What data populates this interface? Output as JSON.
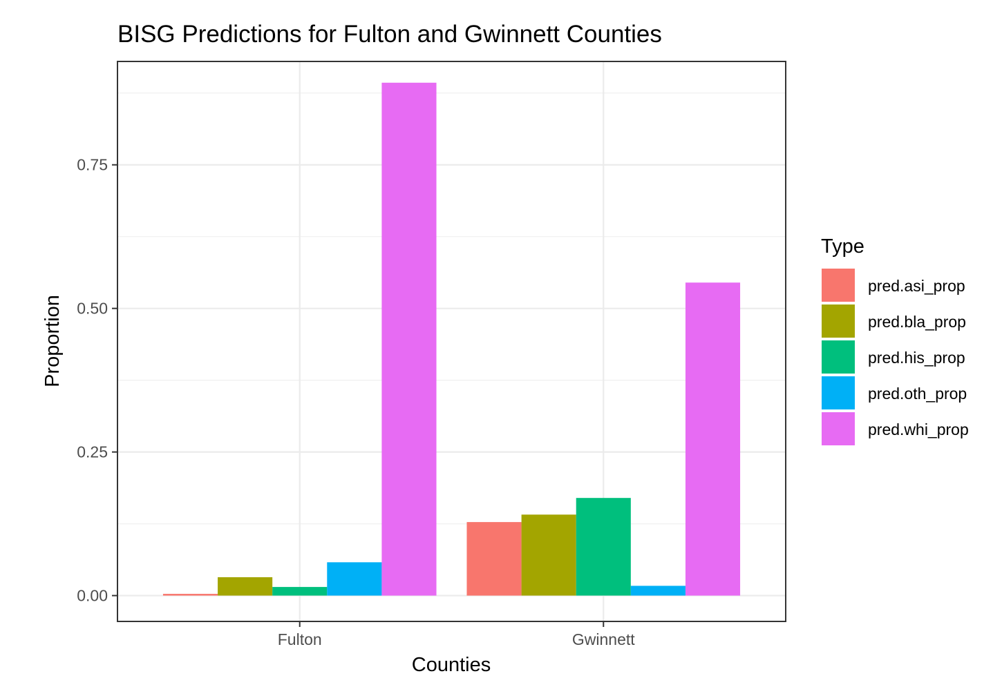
{
  "chart_data": {
    "type": "bar",
    "title": "BISG Predictions for Fulton and Gwinnett Counties",
    "xlabel": "Counties",
    "ylabel": "Proportion",
    "categories": [
      "Fulton",
      "Gwinnett"
    ],
    "ylim": [
      -0.045,
      0.93
    ],
    "yticks": [
      0.0,
      0.25,
      0.5,
      0.75
    ],
    "ytick_labels": [
      "0.00",
      "0.25",
      "0.50",
      "0.75"
    ],
    "grid": true,
    "legend": {
      "title": "Type",
      "position": "right"
    },
    "series": [
      {
        "name": "pred.asi_prop",
        "color": "#F8766D",
        "values": [
          0.003,
          0.128
        ]
      },
      {
        "name": "pred.bla_prop",
        "color": "#A3A500",
        "values": [
          0.032,
          0.141
        ]
      },
      {
        "name": "pred.his_prop",
        "color": "#00BF7D",
        "values": [
          0.015,
          0.17
        ]
      },
      {
        "name": "pred.oth_prop",
        "color": "#00B0F6",
        "values": [
          0.058,
          0.017
        ]
      },
      {
        "name": "pred.whi_prop",
        "color": "#E76BF3",
        "values": [
          0.893,
          0.545
        ]
      }
    ]
  }
}
